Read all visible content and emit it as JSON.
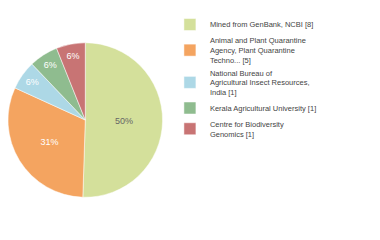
{
  "chart_data": {
    "type": "pie",
    "categories": [
      "Mined from GenBank, NCBI [8]",
      "Animal and Plant Quarantine\nAgency, Plant Quarantine\nTechno... [5]",
      "National Bureau of\nAgricultural Insect Resources,\nIndia [1]",
      "Kerala Agricultural University [1]",
      "Centre for Biodiversity\nGenomics [1]"
    ],
    "values": [
      50,
      31,
      6,
      6,
      6
    ],
    "value_labels": [
      "50%",
      "31%",
      "6%",
      "6%",
      "6%"
    ],
    "colors": [
      "#d4e09b",
      "#f4a460",
      "#add8e6",
      "#8fbc8f",
      "#c87474"
    ],
    "data_labels": true,
    "legend": "right"
  }
}
